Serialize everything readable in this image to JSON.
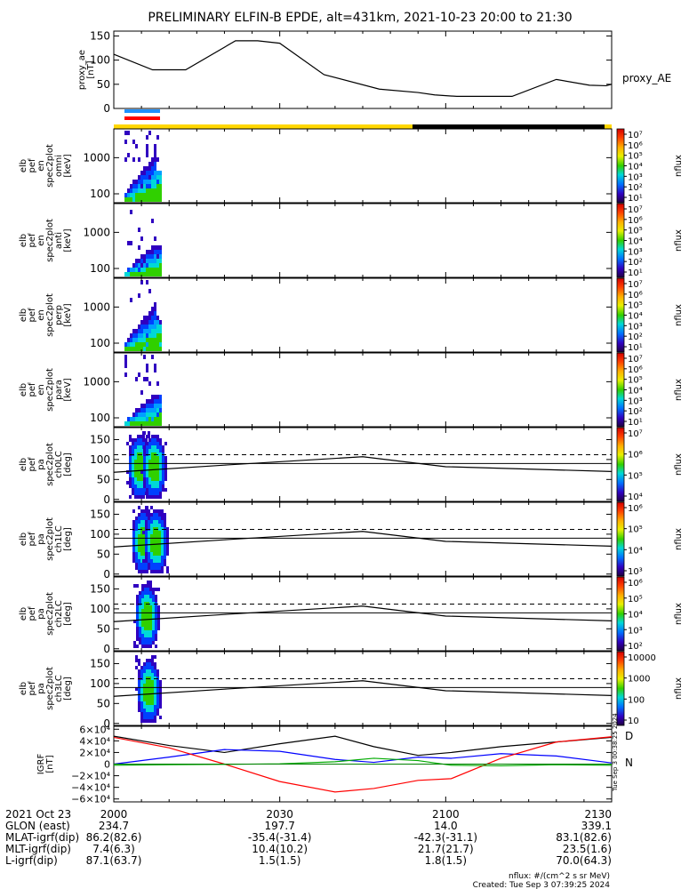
{
  "title": "PRELIMINARY ELFIN-B EPDE, alt=431km, 2021-10-23 20:00 to 21:30",
  "colors": {
    "axis": "#000000",
    "science_bar": "#ffd700",
    "shadow_bar": "#000000",
    "bar_blue": "#1e90ff",
    "bar_red": "#ff0000",
    "grf_x": "#000000",
    "grf_y": "#0000ff",
    "grf_z": "#ff0000",
    "grf_extra": "#00aa00"
  },
  "chart_data": [
    {
      "type": "line",
      "panel": "proxy_ae",
      "ylabel": "proxy_ae [nT]",
      "series_label": "proxy_AE",
      "ylim": [
        0,
        160
      ],
      "yticks": [
        "150",
        "100",
        "50",
        "0"
      ],
      "x": [
        0,
        7,
        13,
        22,
        26,
        30,
        38,
        48,
        55,
        58,
        62,
        72,
        80,
        86,
        89,
        90
      ],
      "y": [
        112,
        80,
        80,
        140,
        140,
        135,
        70,
        40,
        33,
        28,
        25,
        25,
        60,
        48,
        47,
        50
      ]
    },
    {
      "type": "heatmap",
      "panel": "omni",
      "ylabel": "elb pef en spec2plot omni [keV]",
      "yticks": [
        "1000",
        "100"
      ],
      "colorbar_ticks": [
        "10⁷",
        "10⁶",
        "10⁵",
        "10⁴",
        "10³",
        "10²",
        "10¹"
      ],
      "colorbar_label": "nflux"
    },
    {
      "type": "heatmap",
      "panel": "anti",
      "ylabel": "elb pef en spec2plot anti [keV]",
      "yticks": [
        "1000",
        "100"
      ],
      "colorbar_ticks": [
        "10⁷",
        "10⁶",
        "10⁵",
        "10⁴",
        "10³",
        "10²",
        "10¹"
      ],
      "colorbar_label": "nflux"
    },
    {
      "type": "heatmap",
      "panel": "perp",
      "ylabel": "elb pef en spec2plot perp [keV]",
      "yticks": [
        "1000",
        "100"
      ],
      "colorbar_ticks": [
        "10⁷",
        "10⁶",
        "10⁵",
        "10⁴",
        "10³",
        "10²",
        "10¹"
      ],
      "colorbar_label": "nflux"
    },
    {
      "type": "heatmap",
      "panel": "para",
      "ylabel": "elb pef en spec2plot para [keV]",
      "yticks": [
        "1000",
        "100"
      ],
      "colorbar_ticks": [
        "10⁷",
        "10⁶",
        "10⁵",
        "10⁴",
        "10³",
        "10²",
        "10¹"
      ],
      "colorbar_label": "nflux"
    },
    {
      "type": "heatmap",
      "panel": "ch0LC",
      "ylabel": "elb pef pa spec2plot ch0LC [deg]",
      "yticks": [
        "150",
        "100",
        "50",
        "0"
      ],
      "colorbar_ticks": [
        "10⁷",
        "10⁶",
        "10⁵",
        "10⁴"
      ],
      "colorbar_label": "nflux"
    },
    {
      "type": "heatmap",
      "panel": "ch1LC",
      "ylabel": "elb pef pa spec2plot ch1LC [deg]",
      "yticks": [
        "150",
        "100",
        "50",
        "0"
      ],
      "colorbar_ticks": [
        "10⁶",
        "10⁵",
        "10⁴",
        "10³"
      ],
      "colorbar_label": "nflux"
    },
    {
      "type": "heatmap",
      "panel": "ch2LC",
      "ylabel": "elb pef pa spec2plot ch2LC [deg]",
      "yticks": [
        "150",
        "100",
        "50",
        "0"
      ],
      "colorbar_ticks": [
        "10⁶",
        "10⁵",
        "10⁴",
        "10³",
        "10²"
      ],
      "colorbar_label": "nflux"
    },
    {
      "type": "heatmap",
      "panel": "ch3LC",
      "ylabel": "elb pef pa spec2plot ch3LC [deg]",
      "yticks": [
        "150",
        "100",
        "50",
        "0"
      ],
      "colorbar_ticks": [
        "10000",
        "1000",
        "100",
        "10"
      ],
      "colorbar_label": "nflux"
    },
    {
      "type": "line",
      "panel": "igrf",
      "ylabel": "IGRF [nT]",
      "yticks": [
        "6×10⁴",
        "4×10⁴",
        "2×10⁴",
        "0",
        "−2×10⁴",
        "−4×10⁴",
        "−6×10⁴"
      ],
      "legend": [
        "D",
        "N"
      ],
      "ylim": [
        -65000,
        65000
      ],
      "x": [
        0,
        10,
        20,
        30,
        40,
        47,
        55,
        61,
        70,
        80,
        90
      ],
      "series": [
        {
          "values": [
            48000,
            32000,
            20000,
            35000,
            48000,
            30000,
            15000,
            20000,
            30000,
            38000,
            46000
          ]
        },
        {
          "values": [
            0,
            12000,
            25000,
            22000,
            8000,
            3000,
            12000,
            10000,
            18000,
            14000,
            2000
          ]
        },
        {
          "values": [
            46000,
            28000,
            0,
            -30000,
            -48000,
            -42000,
            -28000,
            -25000,
            10000,
            38000,
            47000
          ]
        },
        {
          "values": [
            -2000,
            -1000,
            -500,
            500,
            4000,
            10000,
            6000,
            -2000,
            -3000,
            -1000,
            -2000
          ]
        }
      ]
    }
  ],
  "time_axis": {
    "rows": [
      {
        "label": "2021 Oct 23",
        "values": [
          "2000",
          "2030",
          "2100",
          "2130"
        ]
      },
      {
        "label": "GLON (east)",
        "values": [
          "234.7",
          "197.7",
          "14.0",
          "339.1"
        ]
      },
      {
        "label": "MLAT-igrf(dip)",
        "values": [
          "86.2(82.6)",
          "-35.4(-31.4)",
          "-42.3(-31.1)",
          "83.1(82.6)"
        ]
      },
      {
        "label": "MLT-igrf(dip)",
        "values": [
          "7.4(6.3)",
          "10.4(10.2)",
          "21.7(21.7)",
          "23.5(1.6)"
        ]
      },
      {
        "label": "L-igrf(dip)",
        "values": [
          "87.1(63.7)",
          "1.5(1.5)",
          "1.8(1.5)",
          "70.0(64.3)"
        ]
      }
    ]
  },
  "footer": {
    "units": "nflux: #/(cm^2 s sr MeV)",
    "created": "Created: Tue Sep  3 07:39:25 2024",
    "stamp": "Tue Sep  3 00:38:25 2024"
  }
}
